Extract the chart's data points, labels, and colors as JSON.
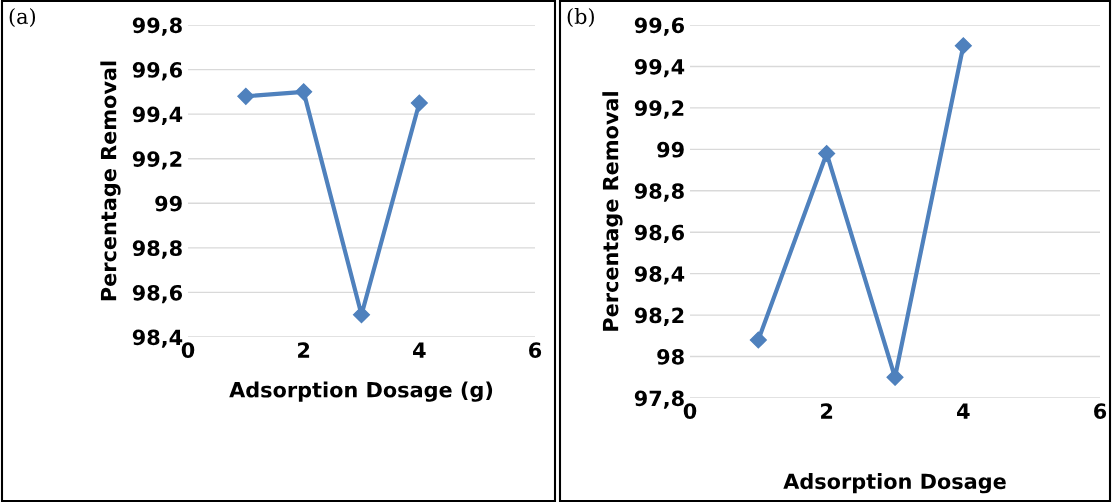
{
  "chart_data": [
    {
      "type": "line",
      "xlabel": "Adsorption Dosage (g)",
      "ylabel": "Percentage Removal",
      "annotations": [
        "(a)"
      ],
      "x": [
        1,
        2,
        3,
        4
      ],
      "series": [
        {
          "color": "#4f81bd",
          "values": [
            99.48,
            99.5,
            98.5,
            99.45
          ]
        }
      ],
      "xlim": [
        0,
        6
      ],
      "xticks": [
        0,
        2,
        4,
        6
      ],
      "ylim": [
        98.4,
        99.8
      ],
      "yticks": [
        {
          "value": 98.4,
          "label": "98,4"
        },
        {
          "value": 98.6,
          "label": "98,6"
        },
        {
          "value": 98.8,
          "label": "98,8"
        },
        99,
        {
          "value": 99.2,
          "label": "99,2"
        },
        {
          "value": 99.4,
          "label": "99,4"
        },
        {
          "value": 99.6,
          "label": "99,6"
        },
        {
          "value": 99.8,
          "label": "99,8"
        }
      ],
      "grid": "y",
      "marker": "diamond",
      "line_style": "solid",
      "legend": false
    },
    {
      "type": "line",
      "xlabel": "Adsorption Dosage",
      "ylabel": "Percentage Removal",
      "annotations": [
        "(b)"
      ],
      "x": [
        1,
        2,
        3,
        4
      ],
      "series": [
        {
          "color": "#4f81bd",
          "values": [
            98.08,
            98.98,
            97.9,
            99.5
          ]
        }
      ],
      "xlim": [
        0,
        6
      ],
      "xticks": [
        0,
        2,
        4,
        6
      ],
      "ylim": [
        97.8,
        99.6
      ],
      "yticks": [
        {
          "value": 97.8,
          "label": "97,8"
        },
        98,
        {
          "value": 98.2,
          "label": "98,2"
        },
        {
          "value": 98.4,
          "label": "98,4"
        },
        {
          "value": 98.6,
          "label": "98,6"
        },
        {
          "value": 98.8,
          "label": "98,8"
        },
        99,
        {
          "value": 99.2,
          "label": "99,2"
        },
        {
          "value": 99.4,
          "label": "99,4"
        },
        {
          "value": 99.6,
          "label": "99,6"
        }
      ],
      "grid": "y",
      "marker": "diamond",
      "line_style": "solid",
      "legend": false
    }
  ]
}
